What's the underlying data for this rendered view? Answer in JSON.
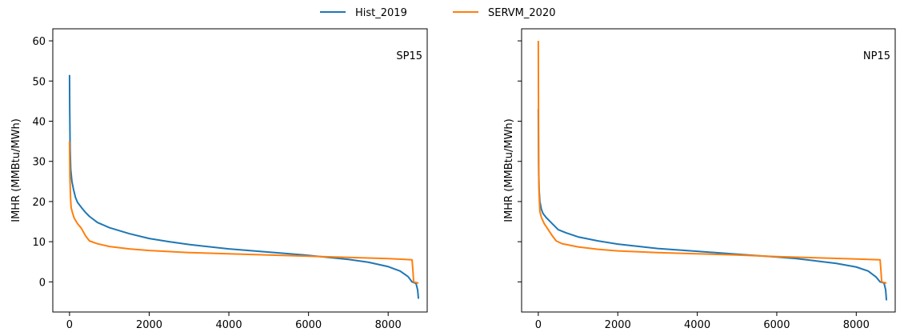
{
  "legend": {
    "placement": "top-center",
    "items": [
      {
        "label": "Hist_2019",
        "color": "#1f77b4"
      },
      {
        "label": "SERVM_2020",
        "color": "#ff7f0e"
      }
    ]
  },
  "chart_data": [
    {
      "type": "line",
      "panel_label": "SP15",
      "ylabel": "IMHR (MMBtu/MWh)",
      "xlabel": "",
      "xlim": [
        -420,
        8980
      ],
      "ylim": [
        -7.5,
        63
      ],
      "xticks": [
        0,
        2000,
        4000,
        6000,
        8000
      ],
      "yticks": [
        0,
        10,
        20,
        30,
        40,
        50,
        60
      ],
      "grid": false,
      "series": [
        {
          "name": "Hist_2019",
          "color": "#1f77b4",
          "points": [
            [
              0,
              51.5
            ],
            [
              5,
              43
            ],
            [
              15,
              33
            ],
            [
              30,
              28
            ],
            [
              60,
              25
            ],
            [
              100,
              23
            ],
            [
              150,
              21
            ],
            [
              200,
              19.8
            ],
            [
              300,
              18.5
            ],
            [
              400,
              17.3
            ],
            [
              500,
              16.3
            ],
            [
              700,
              14.8
            ],
            [
              1000,
              13.5
            ],
            [
              1500,
              12
            ],
            [
              2000,
              10.8
            ],
            [
              2500,
              10
            ],
            [
              3000,
              9.3
            ],
            [
              4000,
              8.2
            ],
            [
              5000,
              7.4
            ],
            [
              6000,
              6.6
            ],
            [
              6500,
              6.1
            ],
            [
              7000,
              5.6
            ],
            [
              7500,
              4.9
            ],
            [
              8000,
              3.8
            ],
            [
              8300,
              2.7
            ],
            [
              8500,
              1.3
            ],
            [
              8600,
              0
            ],
            [
              8700,
              -0.4
            ],
            [
              8740,
              -2
            ],
            [
              8760,
              -4.2
            ]
          ]
        },
        {
          "name": "SERVM_2020",
          "color": "#ff7f0e",
          "points": [
            [
              0,
              35
            ],
            [
              10,
              26
            ],
            [
              25,
              21
            ],
            [
              40,
              18.5
            ],
            [
              80,
              17
            ],
            [
              120,
              15.8
            ],
            [
              200,
              14.5
            ],
            [
              300,
              13.3
            ],
            [
              400,
              11.5
            ],
            [
              500,
              10.2
            ],
            [
              700,
              9.5
            ],
            [
              1000,
              8.8
            ],
            [
              1500,
              8.2
            ],
            [
              2000,
              7.8
            ],
            [
              3000,
              7.3
            ],
            [
              4000,
              7
            ],
            [
              5000,
              6.7
            ],
            [
              6000,
              6.4
            ],
            [
              7000,
              6.1
            ],
            [
              8000,
              5.8
            ],
            [
              8600,
              5.5
            ],
            [
              8620,
              3
            ],
            [
              8640,
              0
            ],
            [
              8760,
              -0.3
            ]
          ]
        }
      ]
    },
    {
      "type": "line",
      "panel_label": "NP15",
      "ylabel": "IMHR (MMBtu/MWh)",
      "xlabel": "",
      "xlim": [
        -420,
        8980
      ],
      "ylim": [
        -7.5,
        63
      ],
      "xticks": [
        0,
        2000,
        4000,
        6000,
        8000
      ],
      "yticks": [
        0,
        10,
        20,
        30,
        40,
        50,
        60
      ],
      "shared_y": true,
      "grid": false,
      "series": [
        {
          "name": "Hist_2019",
          "color": "#1f77b4",
          "points": [
            [
              0,
              43
            ],
            [
              5,
              35
            ],
            [
              10,
              27
            ],
            [
              20,
              23
            ],
            [
              40,
              20
            ],
            [
              80,
              18
            ],
            [
              120,
              17
            ],
            [
              200,
              16
            ],
            [
              300,
              15
            ],
            [
              500,
              13
            ],
            [
              700,
              12.2
            ],
            [
              1000,
              11.2
            ],
            [
              1500,
              10.2
            ],
            [
              2000,
              9.4
            ],
            [
              3000,
              8.3
            ],
            [
              4000,
              7.6
            ],
            [
              5000,
              6.9
            ],
            [
              6000,
              6.2
            ],
            [
              6500,
              5.8
            ],
            [
              7000,
              5.2
            ],
            [
              7500,
              4.6
            ],
            [
              8000,
              3.7
            ],
            [
              8300,
              2.7
            ],
            [
              8500,
              1.2
            ],
            [
              8600,
              0
            ],
            [
              8700,
              -0.3
            ],
            [
              8740,
              -2
            ],
            [
              8760,
              -4.6
            ]
          ]
        },
        {
          "name": "SERVM_2020",
          "color": "#ff7f0e",
          "points": [
            [
              0,
              60
            ],
            [
              5,
              45
            ],
            [
              10,
              30
            ],
            [
              20,
              22
            ],
            [
              40,
              17.5
            ],
            [
              80,
              16
            ],
            [
              150,
              14.5
            ],
            [
              250,
              13
            ],
            [
              350,
              11.5
            ],
            [
              450,
              10.2
            ],
            [
              600,
              9.5
            ],
            [
              1000,
              8.7
            ],
            [
              1500,
              8.1
            ],
            [
              2000,
              7.7
            ],
            [
              3000,
              7.3
            ],
            [
              4000,
              7
            ],
            [
              5000,
              6.7
            ],
            [
              6000,
              6.3
            ],
            [
              7000,
              6
            ],
            [
              8000,
              5.7
            ],
            [
              8600,
              5.5
            ],
            [
              8620,
              3
            ],
            [
              8640,
              0
            ],
            [
              8760,
              -0.3
            ]
          ]
        }
      ]
    }
  ]
}
